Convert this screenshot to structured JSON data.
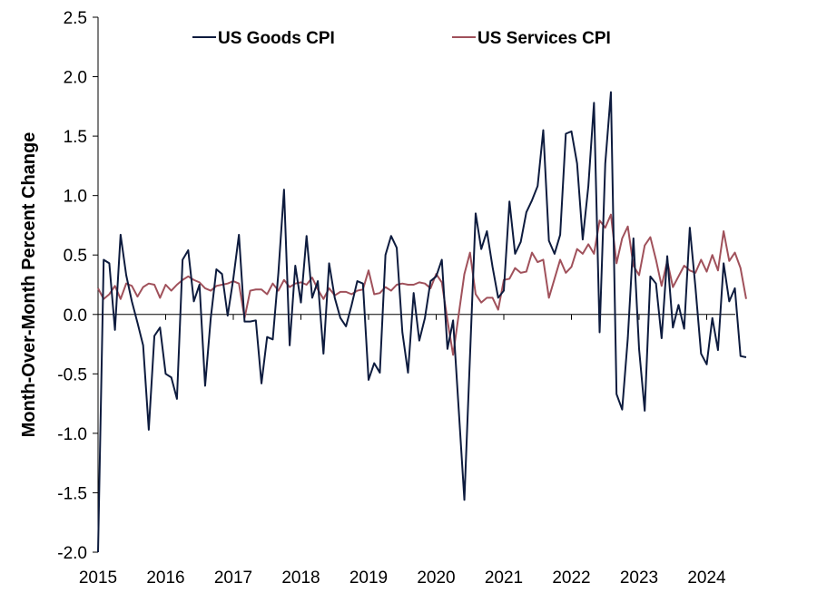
{
  "chart_data": {
    "type": "line",
    "ylabel": "Month-Over-Month Percent Change",
    "ylim": [
      -2.0,
      2.5
    ],
    "y_ticks": [
      "2.5",
      "2.0",
      "1.5",
      "1.0",
      "0.5",
      "0.0",
      "-0.5",
      "-1.0",
      "-1.5",
      "-2.0"
    ],
    "x_tick_labels": [
      "2015",
      "2016",
      "2017",
      "2018",
      "2019",
      "2020",
      "2021",
      "2022",
      "2023",
      "2024"
    ],
    "x_start_year": 2015,
    "grid": false,
    "legend_position": "top-center",
    "series": [
      {
        "name": "US Goods CPI",
        "color": "#0d1b3e",
        "values": [
          -2.0,
          0.46,
          0.43,
          -0.13,
          0.67,
          0.33,
          0.11,
          -0.07,
          -0.26,
          -0.97,
          -0.18,
          -0.11,
          -0.5,
          -0.53,
          -0.71,
          0.46,
          0.54,
          0.11,
          0.25,
          -0.6,
          -0.03,
          0.38,
          0.34,
          -0.01,
          0.3,
          0.67,
          -0.06,
          -0.06,
          -0.05,
          -0.58,
          -0.19,
          -0.21,
          0.35,
          1.05,
          -0.26,
          0.41,
          0.1,
          0.66,
          0.14,
          0.28,
          -0.33,
          0.43,
          0.14,
          -0.03,
          -0.1,
          0.08,
          0.28,
          0.26,
          -0.55,
          -0.41,
          -0.49,
          0.5,
          0.66,
          0.56,
          -0.15,
          -0.49,
          0.18,
          -0.22,
          -0.03,
          0.28,
          0.32,
          0.46,
          -0.29,
          -0.05,
          -0.8,
          -1.56,
          -0.35,
          0.85,
          0.55,
          0.7,
          0.4,
          0.14,
          0.2,
          0.95,
          0.51,
          0.61,
          0.86,
          0.96,
          1.08,
          1.55,
          0.62,
          0.51,
          0.67,
          1.52,
          1.54,
          1.27,
          0.63,
          1.08,
          1.78,
          -0.15,
          1.27,
          1.87,
          -0.67,
          -0.8,
          -0.2,
          0.64,
          -0.29,
          -0.81,
          0.32,
          0.26,
          -0.2,
          0.49,
          -0.11,
          0.08,
          -0.12,
          0.73,
          0.23,
          -0.33,
          -0.42,
          -0.03,
          -0.3,
          0.43,
          0.11,
          0.22,
          -0.35,
          -0.36
        ]
      },
      {
        "name": "US Services CPI",
        "color": "#a0515b",
        "values": [
          0.22,
          0.13,
          0.17,
          0.24,
          0.13,
          0.26,
          0.24,
          0.15,
          0.23,
          0.26,
          0.25,
          0.14,
          0.25,
          0.2,
          0.25,
          0.29,
          0.32,
          0.29,
          0.27,
          0.22,
          0.2,
          0.24,
          0.25,
          0.26,
          0.28,
          0.26,
          -0.03,
          0.2,
          0.21,
          0.21,
          0.17,
          0.26,
          0.2,
          0.29,
          0.23,
          0.26,
          0.27,
          0.25,
          0.31,
          0.21,
          0.13,
          0.22,
          0.16,
          0.19,
          0.19,
          0.17,
          0.2,
          0.21,
          0.37,
          0.17,
          0.18,
          0.23,
          0.2,
          0.25,
          0.26,
          0.25,
          0.25,
          0.27,
          0.26,
          0.22,
          0.34,
          0.27,
          -0.05,
          -0.34,
          0.0,
          0.34,
          0.52,
          0.17,
          0.1,
          0.14,
          0.14,
          0.04,
          0.29,
          0.3,
          0.39,
          0.35,
          0.36,
          0.52,
          0.44,
          0.46,
          0.14,
          0.3,
          0.46,
          0.35,
          0.4,
          0.55,
          0.51,
          0.59,
          0.51,
          0.79,
          0.73,
          0.84,
          0.43,
          0.64,
          0.74,
          0.41,
          0.33,
          0.58,
          0.65,
          0.46,
          0.24,
          0.45,
          0.23,
          0.32,
          0.41,
          0.37,
          0.35,
          0.46,
          0.36,
          0.5,
          0.37,
          0.7,
          0.45,
          0.52,
          0.39,
          0.13
        ]
      }
    ]
  }
}
